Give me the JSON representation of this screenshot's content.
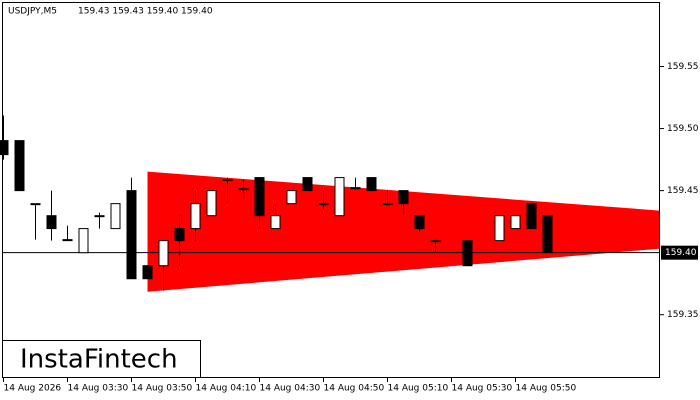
{
  "chart_data": {
    "type": "candlestick",
    "title": "USDJPY,M5",
    "header_values": "159.43 159.43 159.40 159.40",
    "brand": "InstaFintech",
    "categories": [
      "14 Aug 2026",
      null,
      null,
      null,
      "14 Aug 03:30",
      null,
      null,
      null,
      "14 Aug 03:50",
      null,
      null,
      null,
      "14 Aug 04:10",
      null,
      null,
      null,
      "14 Aug 04:30",
      null,
      null,
      null,
      "14 Aug 04:50",
      null,
      null,
      null,
      "14 Aug 05:10",
      null,
      null,
      null,
      "14 Aug 05:30",
      null,
      null,
      null,
      "14 Aug 05:50",
      null,
      null
    ],
    "open": [
      159.4903,
      159.4903,
      159.4395,
      159.4298,
      159.4105,
      159.4,
      159.4298,
      159.4194,
      159.45,
      159.3895,
      159.3895,
      159.4194,
      159.4194,
      159.4298,
      159.4589,
      159.4516,
      159.4605,
      159.4194,
      159.4395,
      159.4605,
      159.4395,
      159.4298,
      159.4524,
      159.4605,
      159.4395,
      159.45,
      159.4298,
      159.4097,
      null,
      159.4097,
      null,
      159.4097,
      159.4194,
      159.4395,
      159.4298
    ],
    "high": [
      159.5105,
      159.4903,
      159.4395,
      159.45,
      159.4218,
      159.4194,
      159.4323,
      159.4395,
      159.4605,
      159.3895,
      159.4097,
      159.4298,
      159.45,
      159.45,
      159.4605,
      159.4589,
      159.4605,
      159.4395,
      159.45,
      159.4605,
      159.45,
      159.4605,
      159.4605,
      159.4605,
      159.45,
      159.45,
      159.4298,
      159.4105,
      null,
      159.4097,
      null,
      159.4298,
      159.4298,
      159.4395,
      159.4298
    ],
    "low": [
      159.475,
      159.45,
      159.4105,
      159.4097,
      159.4097,
      159.4,
      159.4194,
      159.4194,
      159.379,
      159.379,
      159.3694,
      159.3895,
      159.4097,
      159.4298,
      159.4395,
      159.4427,
      159.4194,
      159.4194,
      159.4395,
      159.45,
      159.4347,
      159.4298,
      159.4508,
      159.45,
      159.4379,
      159.4298,
      159.4169,
      159.4,
      null,
      159.3895,
      null,
      159.4097,
      159.4194,
      159.4194,
      159.4
    ],
    "close": [
      159.479,
      159.45,
      159.4387,
      159.4194,
      159.4105,
      159.4194,
      159.4298,
      159.4395,
      159.379,
      159.379,
      159.4097,
      159.4097,
      159.4395,
      159.45,
      159.4589,
      159.4516,
      159.4298,
      159.4298,
      159.45,
      159.45,
      159.4395,
      159.4605,
      159.4524,
      159.45,
      159.4395,
      159.4395,
      159.4194,
      159.4097,
      null,
      159.3895,
      null,
      159.4298,
      159.4298,
      159.4194,
      159.4
    ],
    "pattern": {
      "x": [
        9,
        41
      ],
      "upper": [
        159.4653,
        159.4339
      ],
      "lower": [
        159.3685,
        159.4032
      ],
      "color": "#ff0000"
    },
    "current_price": {
      "value": 159.4,
      "label": "159.40"
    },
    "ylim": [
      159.299,
      159.602
    ],
    "yticks": [
      159.35,
      {
        "value": 159.5,
        "label": "159.50"
      },
      159.45,
      159.55
    ]
  }
}
